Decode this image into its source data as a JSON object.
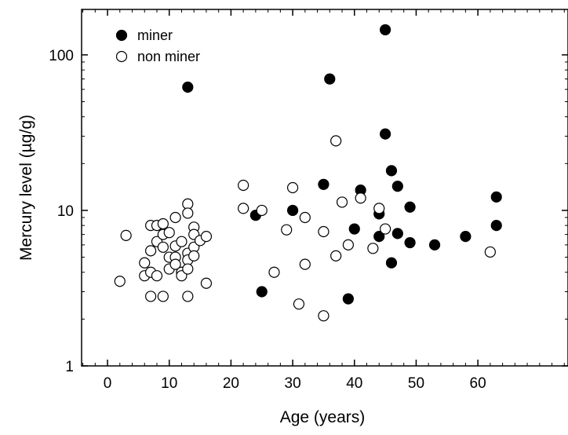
{
  "chart_data": {
    "type": "scatter",
    "x_label": "Age (years)",
    "y_label": "Mercury level (µg/g)",
    "xlim": [
      -4.2,
      74.6
    ],
    "xticks": [
      0,
      10,
      20,
      30,
      40,
      50,
      60
    ],
    "ylim": [
      1,
      196
    ],
    "yticks": [
      1,
      10,
      100
    ],
    "log_y": true,
    "legend": "upper left",
    "series": [
      {
        "name": "miner",
        "color": "#000000",
        "filled": true,
        "x": [
          13,
          24,
          25,
          30,
          35,
          36,
          39,
          40,
          41,
          44,
          44,
          45,
          45,
          46,
          46,
          47,
          47,
          49,
          49,
          53,
          58,
          63,
          63
        ],
        "values": [
          62,
          9.3,
          3,
          10,
          14.7,
          70,
          2.7,
          7.6,
          13.5,
          9.5,
          6.8,
          145,
          31,
          18,
          4.6,
          14.3,
          7.1,
          10.5,
          6.2,
          6.0,
          6.8,
          12.2,
          8.0
        ]
      },
      {
        "name": "non miner",
        "color": "#000000",
        "filled": false,
        "x": [
          2,
          3,
          6,
          6,
          7,
          7,
          7,
          7,
          8,
          8,
          8,
          9,
          9,
          9,
          9,
          10,
          10,
          10,
          11,
          11,
          11,
          11,
          12,
          12,
          12,
          13,
          13,
          13,
          13,
          13,
          13,
          14,
          14,
          14,
          14,
          15,
          16,
          16,
          22,
          22,
          25,
          27,
          29,
          30,
          31,
          32,
          32,
          35,
          35,
          37,
          37,
          38,
          39,
          41,
          43,
          44,
          45,
          62
        ],
        "values": [
          3.5,
          6.9,
          4.6,
          3.8,
          8,
          5.5,
          4,
          2.8,
          8,
          6.3,
          3.8,
          8.2,
          7,
          5.8,
          2.8,
          7.2,
          5,
          4.2,
          9,
          5.9,
          5,
          4.5,
          6.3,
          4,
          3.8,
          11,
          9.6,
          5.3,
          4.8,
          4.2,
          2.8,
          7.8,
          7,
          5.8,
          5.1,
          6.4,
          6.8,
          3.4,
          14.5,
          10.3,
          10,
          4,
          7.5,
          14,
          2.5,
          9,
          4.5,
          7.3,
          2.1,
          28,
          5.1,
          11.3,
          6,
          12,
          5.7,
          10.3,
          7.6,
          5.4
        ]
      }
    ]
  }
}
